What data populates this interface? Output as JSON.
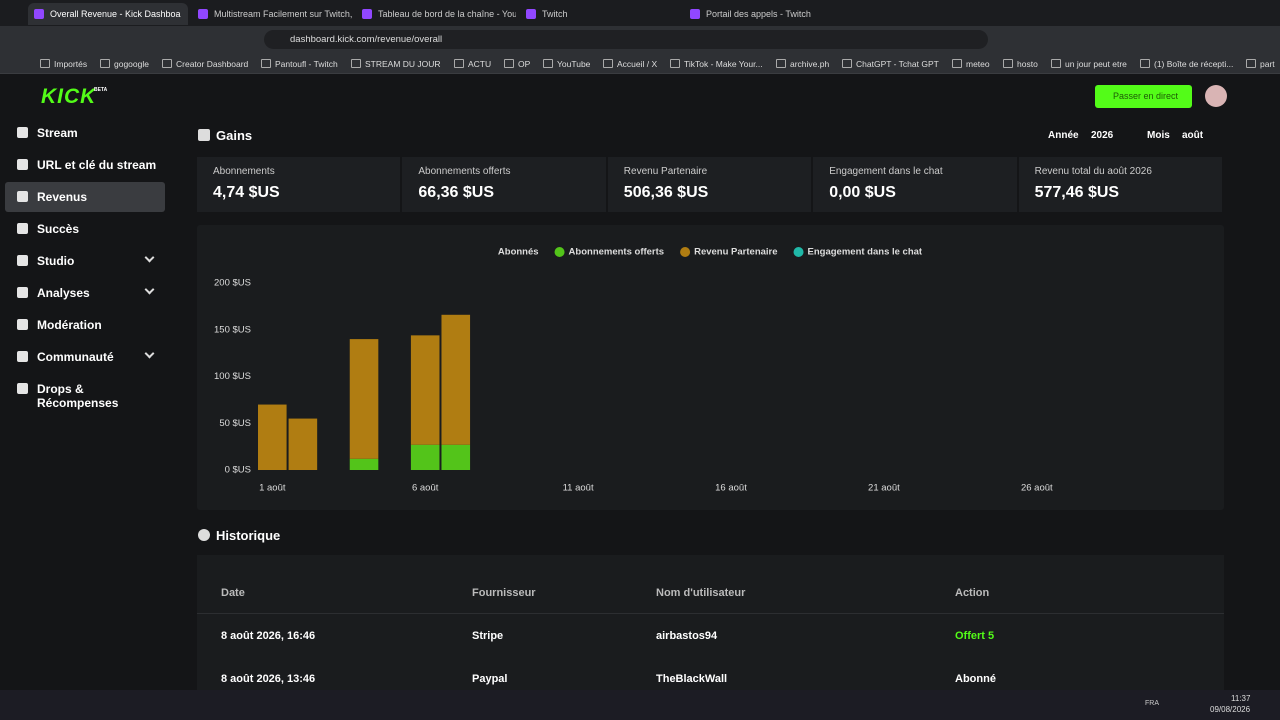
{
  "browser": {
    "tabs": [
      "Overall Revenue - Kick Dashboa",
      "Multistream Facilement sur Twitch, Yo",
      "Tableau de bord de la chaîne - YouTu",
      "Twitch",
      "Portail des appels - Twitch"
    ],
    "url": "dashboard.kick.com/revenue/overall",
    "bookmarks": [
      "Importés",
      "gogoogle",
      "Creator Dashboard",
      "Pantoufl - Twitch",
      "STREAM DU JOUR",
      "ACTU",
      "OP",
      "YouTube",
      "Accueil / X",
      "TikTok - Make Your...",
      "archive.ph",
      "ChatGPT - Tchat GPT",
      "meteo",
      "hosto",
      "un jour peut etre",
      "(1) Boîte de récepti...",
      "part"
    ]
  },
  "header": {
    "logo": "KICK",
    "logo_badge": "BETA",
    "go_live": "Passer en direct"
  },
  "sidebar": {
    "items": [
      {
        "label": "Stream",
        "expandable": false
      },
      {
        "label": "URL et clé du stream",
        "expandable": false
      },
      {
        "label": "Revenus",
        "expandable": false,
        "active": true
      },
      {
        "label": "Succès",
        "expandable": false
      },
      {
        "label": "Studio",
        "expandable": true
      },
      {
        "label": "Analyses",
        "expandable": true
      },
      {
        "label": "Modération",
        "expandable": false
      },
      {
        "label": "Communauté",
        "expandable": true
      },
      {
        "label": "Drops & Récompenses",
        "expandable": false
      }
    ]
  },
  "earnings": {
    "title": "Gains",
    "year_label": "Année",
    "year": "2026",
    "month_label": "Mois",
    "month": "août",
    "cards": [
      {
        "label": "Abonnements",
        "value": "4,74 $US"
      },
      {
        "label": "Abonnements offerts",
        "value": "66,36 $US"
      },
      {
        "label": "Revenu Partenaire",
        "value": "506,36 $US"
      },
      {
        "label": "Engagement dans le chat",
        "value": "0,00 $US"
      },
      {
        "label": "Revenu total du août 2026",
        "value": "577,46 $US"
      }
    ]
  },
  "chart_data": {
    "type": "stacked-bar",
    "categories": [
      "1 août",
      null,
      null,
      null,
      null,
      "6 août",
      null,
      null,
      null,
      null,
      "11 août",
      null,
      null,
      null,
      null,
      "16 août",
      null,
      null,
      null,
      null,
      "21 août",
      null,
      null,
      null,
      null,
      "26 août",
      null,
      null,
      null,
      null,
      null
    ],
    "series": [
      {
        "name": "Abonnés",
        "values": [
          null,
          null,
          null,
          null,
          null,
          null,
          null,
          null,
          null,
          null,
          null,
          null,
          null,
          null,
          null,
          null,
          null,
          null,
          null,
          null,
          null,
          null,
          null,
          null,
          null,
          null,
          null,
          null,
          null,
          null,
          null
        ]
      },
      {
        "name": "Abonnements offerts",
        "color": "#53c41a",
        "values": [
          null,
          null,
          null,
          12,
          null,
          27,
          27,
          null,
          null,
          null,
          null,
          null,
          null,
          null,
          null,
          null,
          null,
          null,
          null,
          null,
          null,
          null,
          null,
          null,
          null,
          null,
          null,
          null,
          null,
          null,
          null
        ]
      },
      {
        "name": "Revenu Partenaire",
        "color": "#b07d12",
        "values": [
          70,
          55,
          null,
          128,
          null,
          117,
          139,
          null,
          null,
          null,
          null,
          null,
          null,
          null,
          null,
          null,
          null,
          null,
          null,
          null,
          null,
          null,
          null,
          null,
          null,
          null,
          null,
          null,
          null,
          null,
          null
        ]
      },
      {
        "name": "Engagement dans le chat",
        "color": "#20b8a8",
        "values": [
          null,
          null,
          null,
          null,
          null,
          null,
          null,
          null,
          null,
          null,
          null,
          null,
          null,
          null,
          null,
          null,
          null,
          null,
          null,
          null,
          null,
          null,
          null,
          null,
          null,
          null,
          null,
          null,
          null,
          null,
          null
        ]
      }
    ],
    "ylim": [
      0,
      200
    ],
    "yticks": [
      {
        "value": 0,
        "label": "0 $US"
      },
      {
        "value": 50,
        "label": "50 $US"
      },
      {
        "value": 100,
        "label": "100 $US"
      },
      {
        "value": 150,
        "label": "150 $US"
      },
      {
        "value": 200,
        "label": "200 $US"
      }
    ],
    "grid": false
  },
  "history": {
    "title": "Historique",
    "columns": [
      "Date",
      "Fournisseur",
      "Nom d'utilisateur",
      "Action"
    ],
    "rows": [
      [
        "8 août 2026, 16:46",
        "Stripe",
        "airbastos94",
        "Offert 5"
      ],
      [
        "8 août 2026, 13:46",
        "Paypal",
        "TheBlackWall",
        "Abonné"
      ]
    ]
  },
  "taskbar": {
    "lang": "FRA",
    "time": "11:37",
    "date": "09/08/2026"
  }
}
